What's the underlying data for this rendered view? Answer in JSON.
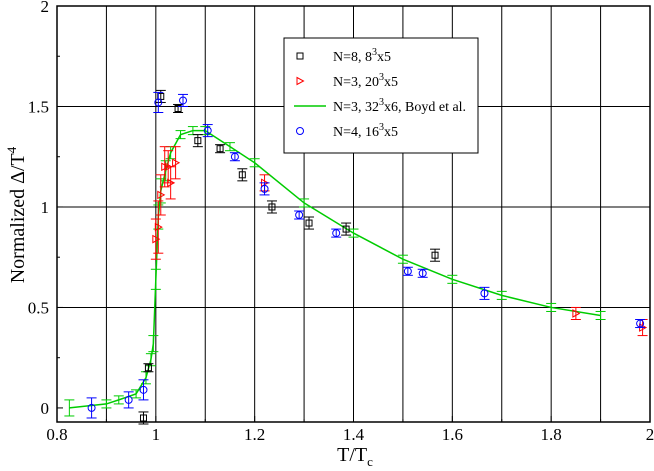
{
  "chart_data": {
    "type": "scatter",
    "title": "",
    "xlabel": "T/T",
    "xlabel_sub": "c",
    "ylabel": "Normalized Δ/T",
    "ylabel_sup": "4",
    "xlim": [
      0.8,
      2.0
    ],
    "ylim": [
      -0.07,
      2.0
    ],
    "xticks": [
      0.8,
      1.0,
      1.2,
      1.4,
      1.6,
      1.8,
      2.0
    ],
    "xtick_labels": [
      "0.8",
      "1",
      "1.2",
      "1.4",
      "1.6",
      "1.8",
      "2"
    ],
    "yticks": [
      0,
      0.5,
      1.0,
      1.5,
      2.0
    ],
    "ytick_labels": [
      "0",
      "0.5",
      "1",
      "1.5",
      "2"
    ],
    "vgrid": [
      0.9,
      1.0,
      1.1,
      1.2,
      1.3,
      1.4,
      1.5,
      1.6,
      1.7,
      1.8,
      1.9
    ],
    "hgrid": [
      0.5,
      1.0,
      1.5
    ],
    "grid": true,
    "legend_position": "top-center",
    "series": [
      {
        "name": "N=8, 8",
        "name_sup": "3",
        "name_tail": "x5",
        "marker": "square",
        "color": "#000000",
        "points": [
          {
            "x": 0.975,
            "y": -0.05,
            "err": 0.03
          },
          {
            "x": 0.985,
            "y": 0.2,
            "err": 0.02
          },
          {
            "x": 1.01,
            "y": 1.55,
            "err": 0.03
          },
          {
            "x": 1.045,
            "y": 1.49,
            "err": 0.02
          },
          {
            "x": 1.085,
            "y": 1.33,
            "err": 0.03
          },
          {
            "x": 1.13,
            "y": 1.29,
            "err": 0.02
          },
          {
            "x": 1.175,
            "y": 1.16,
            "err": 0.03
          },
          {
            "x": 1.235,
            "y": 1.0,
            "err": 0.03
          },
          {
            "x": 1.31,
            "y": 0.92,
            "err": 0.03
          },
          {
            "x": 1.385,
            "y": 0.89,
            "err": 0.03
          },
          {
            "x": 1.565,
            "y": 0.76,
            "err": 0.03
          }
        ]
      },
      {
        "name": "N=3, 20",
        "name_sup": "3",
        "name_tail": "x5",
        "marker": "triangle-right",
        "color": "#ff0000",
        "points": [
          {
            "x": 1.0,
            "y": 0.84,
            "err": 0.1
          },
          {
            "x": 1.005,
            "y": 0.9,
            "err": 0.13
          },
          {
            "x": 1.01,
            "y": 1.06,
            "err": 0.1
          },
          {
            "x": 1.018,
            "y": 1.2,
            "err": 0.1
          },
          {
            "x": 1.025,
            "y": 1.2,
            "err": 0.08
          },
          {
            "x": 1.03,
            "y": 1.12,
            "err": 0.08
          },
          {
            "x": 1.04,
            "y": 1.22,
            "err": 0.08
          },
          {
            "x": 1.22,
            "y": 1.12,
            "err": 0.04
          },
          {
            "x": 1.85,
            "y": 0.47,
            "err": 0.03
          },
          {
            "x": 1.985,
            "y": 0.4,
            "err": 0.04
          }
        ]
      },
      {
        "name": "N=3, 32",
        "name_sup": "3",
        "name_tail": "x6, Boyd et al.",
        "marker": "line",
        "color": "#00cc00",
        "points": [
          {
            "x": 0.825,
            "y": 0.0,
            "err": 0.04
          },
          {
            "x": 0.9,
            "y": 0.02,
            "err": 0.02
          },
          {
            "x": 0.925,
            "y": 0.04,
            "err": 0.02
          },
          {
            "x": 0.96,
            "y": 0.07,
            "err": 0.02
          },
          {
            "x": 0.98,
            "y": 0.15,
            "err": 0.03
          },
          {
            "x": 0.99,
            "y": 0.24,
            "err": 0.03
          },
          {
            "x": 0.995,
            "y": 0.32,
            "err": 0.04
          },
          {
            "x": 1.0,
            "y": 0.64,
            "err": 0.05
          },
          {
            "x": 1.005,
            "y": 0.95,
            "err": 0.06
          },
          {
            "x": 1.01,
            "y": 1.08,
            "err": 0.06
          },
          {
            "x": 1.02,
            "y": 1.18,
            "err": 0.05
          },
          {
            "x": 1.03,
            "y": 1.27,
            "err": 0.03
          },
          {
            "x": 1.05,
            "y": 1.36,
            "err": 0.02
          },
          {
            "x": 1.075,
            "y": 1.38,
            "err": 0.02
          },
          {
            "x": 1.1,
            "y": 1.38,
            "err": 0.02
          },
          {
            "x": 1.15,
            "y": 1.3,
            "err": 0.02
          },
          {
            "x": 1.2,
            "y": 1.22,
            "err": 0.02
          },
          {
            "x": 1.3,
            "y": 1.02,
            "err": 0.02
          },
          {
            "x": 1.4,
            "y": 0.87,
            "err": 0.02
          },
          {
            "x": 1.5,
            "y": 0.74,
            "err": 0.02
          },
          {
            "x": 1.6,
            "y": 0.64,
            "err": 0.02
          },
          {
            "x": 1.7,
            "y": 0.56,
            "err": 0.02
          },
          {
            "x": 1.8,
            "y": 0.5,
            "err": 0.02
          },
          {
            "x": 1.9,
            "y": 0.46,
            "err": 0.02
          }
        ]
      },
      {
        "name": "N=4, 16",
        "name_sup": "3",
        "name_tail": "x5",
        "marker": "circle",
        "color": "#0000ff",
        "points": [
          {
            "x": 0.87,
            "y": 0.0,
            "err": 0.05
          },
          {
            "x": 0.945,
            "y": 0.04,
            "err": 0.04
          },
          {
            "x": 0.975,
            "y": 0.09,
            "err": 0.05
          },
          {
            "x": 1.005,
            "y": 1.52,
            "err": 0.05
          },
          {
            "x": 1.055,
            "y": 1.53,
            "err": 0.03
          },
          {
            "x": 1.105,
            "y": 1.38,
            "err": 0.03
          },
          {
            "x": 1.16,
            "y": 1.25,
            "err": 0.02
          },
          {
            "x": 1.22,
            "y": 1.09,
            "err": 0.03
          },
          {
            "x": 1.29,
            "y": 0.96,
            "err": 0.02
          },
          {
            "x": 1.365,
            "y": 0.87,
            "err": 0.02
          },
          {
            "x": 1.51,
            "y": 0.68,
            "err": 0.02
          },
          {
            "x": 1.54,
            "y": 0.67,
            "err": 0.02
          },
          {
            "x": 1.665,
            "y": 0.57,
            "err": 0.03
          },
          {
            "x": 1.98,
            "y": 0.42,
            "err": 0.02
          }
        ]
      }
    ]
  }
}
